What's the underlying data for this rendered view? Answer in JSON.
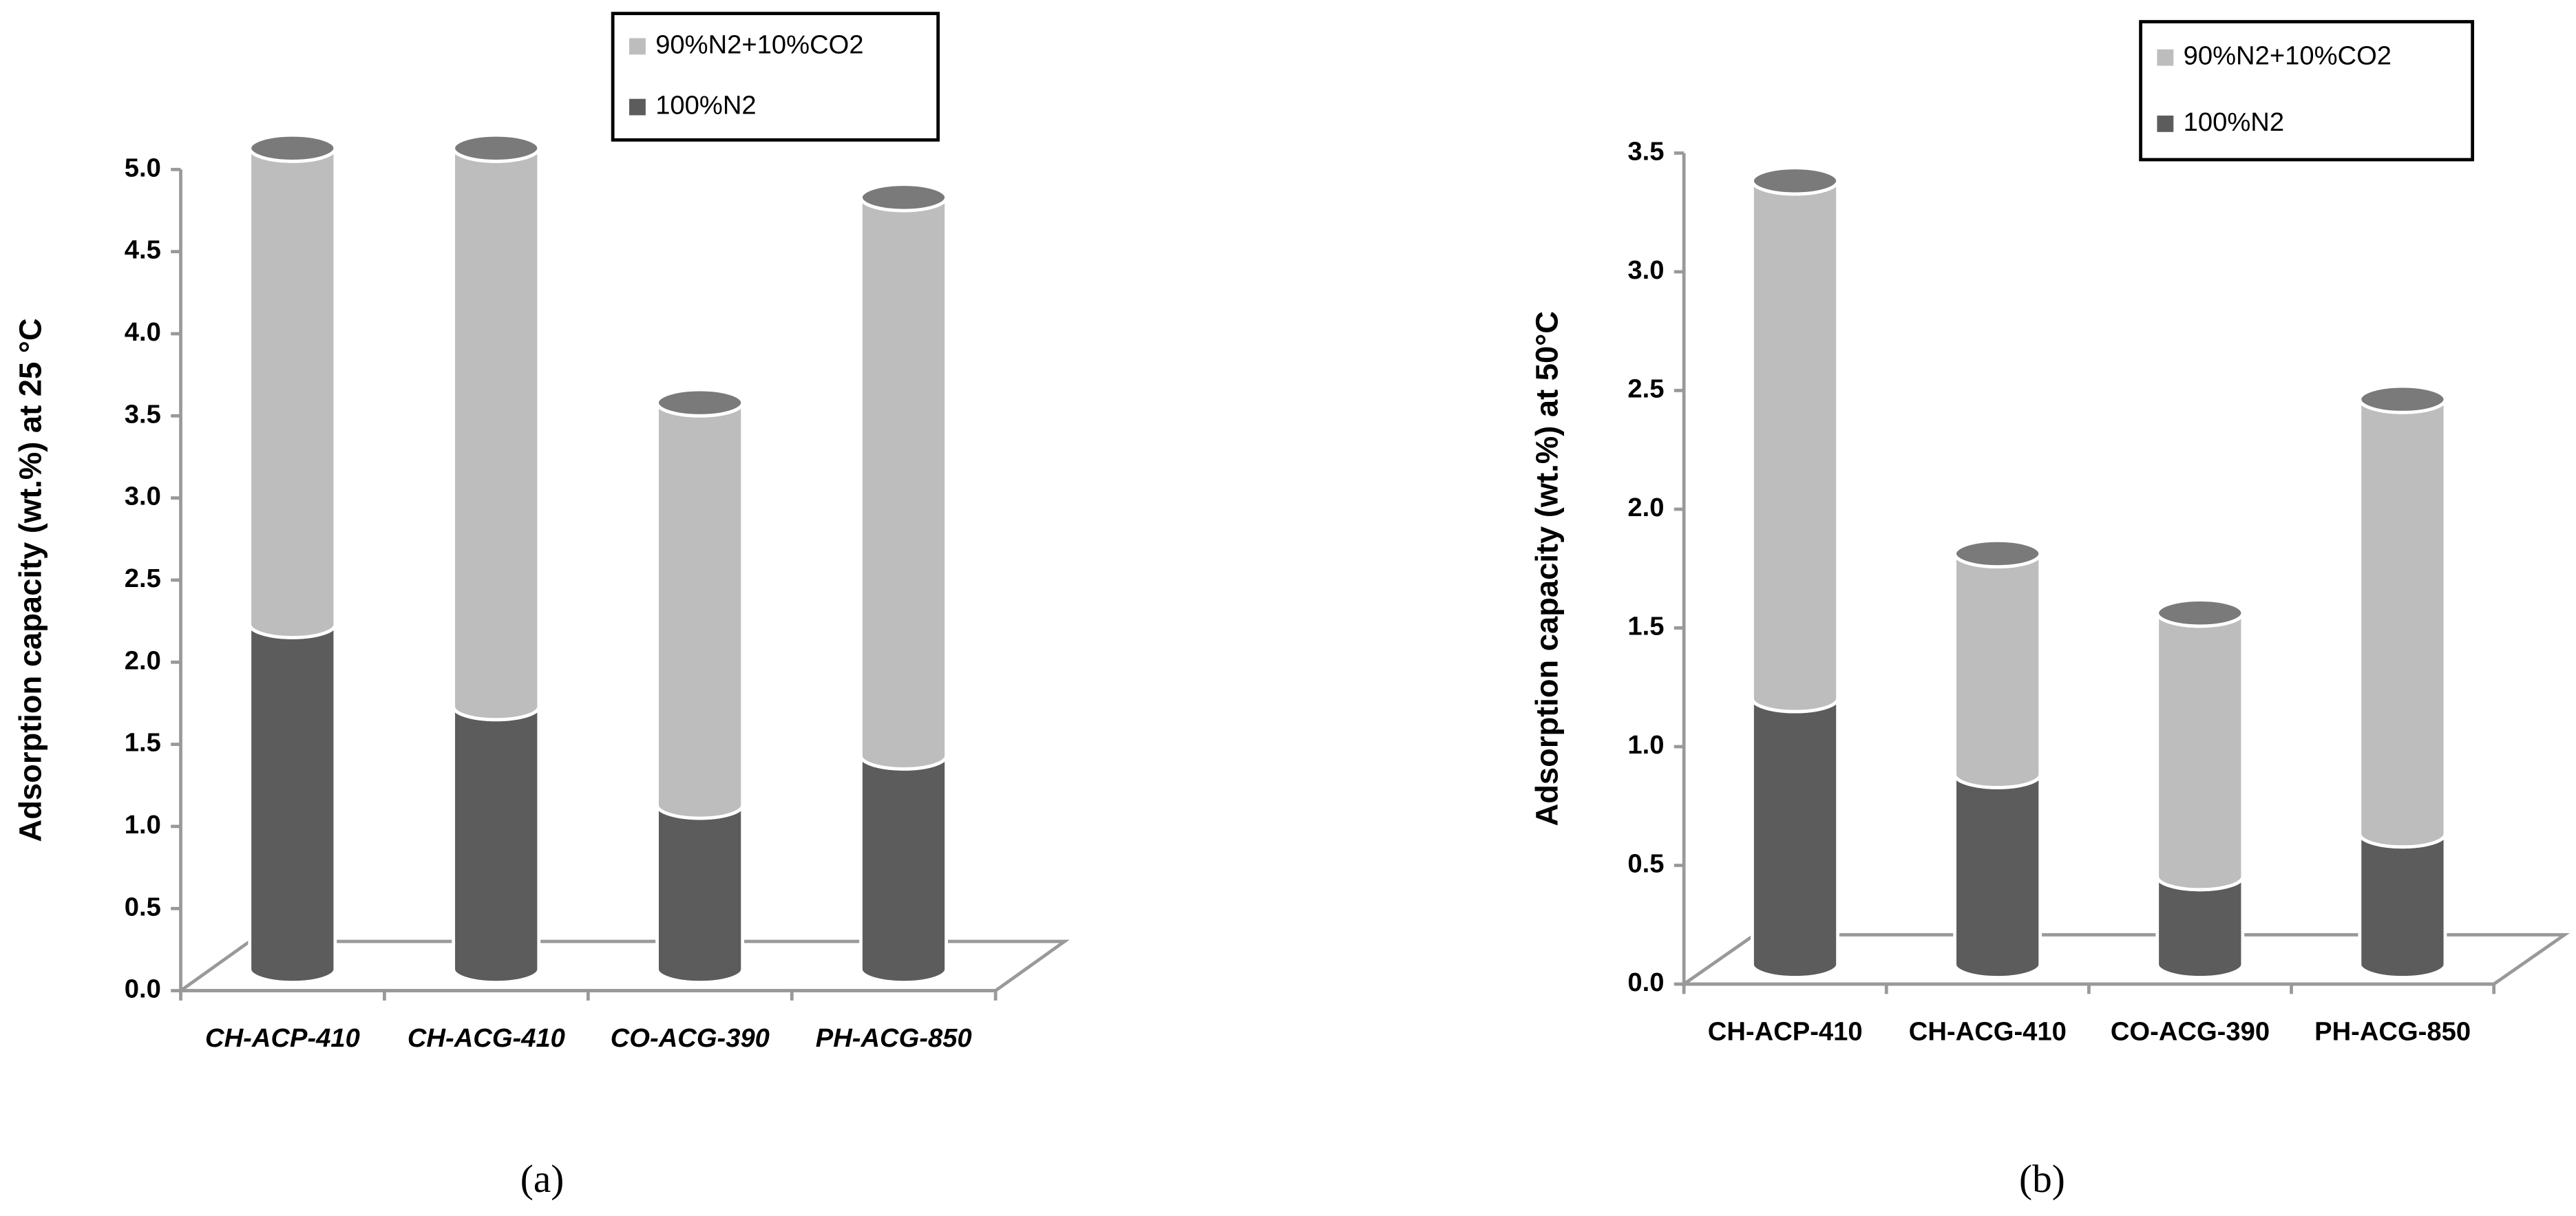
{
  "chart_data": [
    {
      "type": "bar",
      "stacked": true,
      "caption": "(a)",
      "y_label": "Adsorption capacity (wt.%) at 25 °C",
      "categories": [
        "CH-ACP-410",
        "CH-ACG-410",
        "CO-ACG-390",
        "PH-ACG-850"
      ],
      "series": [
        {
          "name": "100%N2",
          "color": "#5c5c5c",
          "values": [
            2.1,
            1.6,
            1.0,
            1.3
          ]
        },
        {
          "name": "90%N2+10%CO2",
          "color": "#bdbdbd",
          "values": [
            2.9,
            3.4,
            2.45,
            3.4
          ]
        }
      ],
      "ylim": [
        0,
        5
      ],
      "yticks": [
        {
          "value": 0,
          "label": "0.0"
        },
        0.5,
        {
          "value": 1,
          "label": "1.0"
        },
        1.5,
        {
          "value": 2,
          "label": "2.0"
        },
        2.5,
        {
          "value": 3,
          "label": "3.0"
        },
        3.5,
        {
          "value": 4,
          "label": "4.0"
        },
        4.5,
        {
          "value": 5,
          "label": "5.0"
        }
      ],
      "italic_categories": true
    },
    {
      "type": "bar",
      "stacked": true,
      "caption": "(b)",
      "y_label": "Adsorption capacity (wt.%) at 50°C",
      "categories": [
        "CH-ACP-410",
        "CH-ACG-410",
        "CO-ACG-390",
        "PH-ACG-850"
      ],
      "series": [
        {
          "name": "100%N2",
          "color": "#5c5c5c",
          "values": [
            1.12,
            0.8,
            0.37,
            0.55
          ]
        },
        {
          "name": "90%N2+10%CO2",
          "color": "#bdbdbd",
          "values": [
            2.18,
            0.93,
            1.11,
            1.83
          ]
        }
      ],
      "ylim": [
        0,
        3.5
      ],
      "yticks": [
        {
          "value": 0,
          "label": "0.0"
        },
        0.5,
        {
          "value": 1,
          "label": "1.0"
        },
        1.5,
        {
          "value": 2,
          "label": "2.0"
        },
        2.5,
        {
          "value": 3,
          "label": "3.0"
        },
        3.5
      ],
      "italic_categories": false
    }
  ]
}
